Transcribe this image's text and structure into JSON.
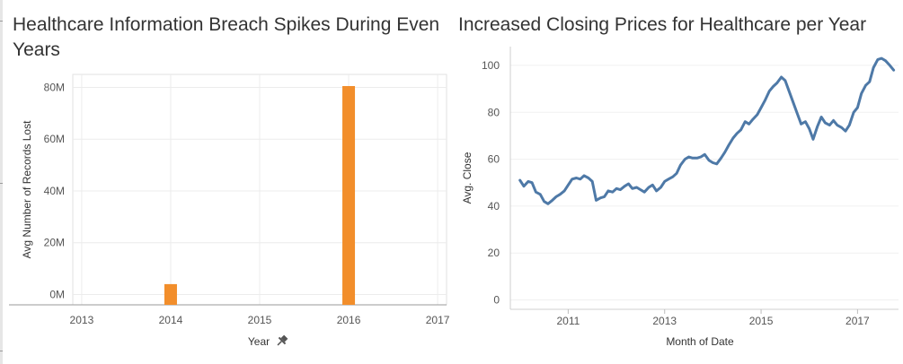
{
  "charts": [
    {
      "id": "breach",
      "type": "bar",
      "title": "Healthcare Information Breach Spikes During Even Years",
      "xlabel": "Year",
      "ylabel": "Avg Number of Records Lost",
      "x_ticks": [
        "2013",
        "2014",
        "2015",
        "2016",
        "2017"
      ],
      "x_range": [
        2012.9,
        2017.1
      ],
      "y_ticks": [
        "0M",
        "20M",
        "40M",
        "60M",
        "80M"
      ],
      "y_tick_values": [
        0,
        20,
        40,
        60,
        80
      ],
      "ylim": [
        -4,
        85
      ],
      "bars": [
        {
          "x": 2014,
          "value": 4,
          "color": "#f28e2b"
        },
        {
          "x": 2016,
          "value": 80.5,
          "color": "#f28e2b"
        }
      ],
      "pin_icon": "pin-icon"
    },
    {
      "id": "price",
      "type": "line",
      "title": "Increased Closing Prices for Healthcare per Year",
      "xlabel": "Month of Date",
      "ylabel": "Avg. Close",
      "x_ticks": [
        "2011",
        "2013",
        "2015",
        "2017"
      ],
      "x_tick_values": [
        2011,
        2013,
        2015,
        2017
      ],
      "x_range": [
        2009.8,
        2017.85
      ],
      "y_ticks": [
        "0",
        "20",
        "40",
        "60",
        "80",
        "100"
      ],
      "y_tick_values": [
        0,
        20,
        40,
        60,
        80,
        100
      ],
      "ylim": [
        -4,
        108
      ],
      "color": "#4e79a7",
      "series": [
        {
          "x": 2010.0,
          "y": 51
        },
        {
          "x": 2010.08,
          "y": 48.5
        },
        {
          "x": 2010.17,
          "y": 50.5
        },
        {
          "x": 2010.25,
          "y": 50
        },
        {
          "x": 2010.33,
          "y": 46
        },
        {
          "x": 2010.42,
          "y": 45
        },
        {
          "x": 2010.5,
          "y": 42
        },
        {
          "x": 2010.58,
          "y": 41
        },
        {
          "x": 2010.67,
          "y": 42.5
        },
        {
          "x": 2010.75,
          "y": 44
        },
        {
          "x": 2010.83,
          "y": 45
        },
        {
          "x": 2010.92,
          "y": 46.5
        },
        {
          "x": 2011.0,
          "y": 49
        },
        {
          "x": 2011.08,
          "y": 51.5
        },
        {
          "x": 2011.17,
          "y": 52
        },
        {
          "x": 2011.25,
          "y": 51.5
        },
        {
          "x": 2011.33,
          "y": 53
        },
        {
          "x": 2011.42,
          "y": 52
        },
        {
          "x": 2011.5,
          "y": 50.5
        },
        {
          "x": 2011.58,
          "y": 42.5
        },
        {
          "x": 2011.67,
          "y": 43.5
        },
        {
          "x": 2011.75,
          "y": 44
        },
        {
          "x": 2011.83,
          "y": 46.5
        },
        {
          "x": 2011.92,
          "y": 46
        },
        {
          "x": 2012.0,
          "y": 47.5
        },
        {
          "x": 2012.08,
          "y": 47
        },
        {
          "x": 2012.17,
          "y": 48.5
        },
        {
          "x": 2012.25,
          "y": 49.5
        },
        {
          "x": 2012.33,
          "y": 47.5
        },
        {
          "x": 2012.42,
          "y": 48
        },
        {
          "x": 2012.5,
          "y": 47
        },
        {
          "x": 2012.58,
          "y": 46
        },
        {
          "x": 2012.67,
          "y": 48
        },
        {
          "x": 2012.75,
          "y": 49
        },
        {
          "x": 2012.83,
          "y": 46.5
        },
        {
          "x": 2012.92,
          "y": 48
        },
        {
          "x": 2013.0,
          "y": 50.5
        },
        {
          "x": 2013.08,
          "y": 51.5
        },
        {
          "x": 2013.17,
          "y": 52.5
        },
        {
          "x": 2013.25,
          "y": 54
        },
        {
          "x": 2013.33,
          "y": 57.5
        },
        {
          "x": 2013.42,
          "y": 60
        },
        {
          "x": 2013.5,
          "y": 61
        },
        {
          "x": 2013.58,
          "y": 60.5
        },
        {
          "x": 2013.67,
          "y": 60.5
        },
        {
          "x": 2013.75,
          "y": 61
        },
        {
          "x": 2013.83,
          "y": 62
        },
        {
          "x": 2013.92,
          "y": 59.5
        },
        {
          "x": 2014.0,
          "y": 58.5
        },
        {
          "x": 2014.08,
          "y": 58
        },
        {
          "x": 2014.17,
          "y": 60.5
        },
        {
          "x": 2014.25,
          "y": 63
        },
        {
          "x": 2014.33,
          "y": 66
        },
        {
          "x": 2014.42,
          "y": 69
        },
        {
          "x": 2014.5,
          "y": 71
        },
        {
          "x": 2014.58,
          "y": 72.5
        },
        {
          "x": 2014.67,
          "y": 76
        },
        {
          "x": 2014.75,
          "y": 75
        },
        {
          "x": 2014.83,
          "y": 77
        },
        {
          "x": 2014.92,
          "y": 79
        },
        {
          "x": 2015.0,
          "y": 82
        },
        {
          "x": 2015.08,
          "y": 85
        },
        {
          "x": 2015.17,
          "y": 89
        },
        {
          "x": 2015.25,
          "y": 91
        },
        {
          "x": 2015.33,
          "y": 92.5
        },
        {
          "x": 2015.42,
          "y": 95
        },
        {
          "x": 2015.5,
          "y": 93.5
        },
        {
          "x": 2015.58,
          "y": 89
        },
        {
          "x": 2015.67,
          "y": 84
        },
        {
          "x": 2015.75,
          "y": 79.5
        },
        {
          "x": 2015.83,
          "y": 75
        },
        {
          "x": 2015.92,
          "y": 76
        },
        {
          "x": 2016.0,
          "y": 73
        },
        {
          "x": 2016.08,
          "y": 68.5
        },
        {
          "x": 2016.17,
          "y": 74
        },
        {
          "x": 2016.25,
          "y": 78
        },
        {
          "x": 2016.33,
          "y": 75.5
        },
        {
          "x": 2016.42,
          "y": 74.5
        },
        {
          "x": 2016.5,
          "y": 76.5
        },
        {
          "x": 2016.58,
          "y": 74.5
        },
        {
          "x": 2016.67,
          "y": 73.5
        },
        {
          "x": 2016.75,
          "y": 72
        },
        {
          "x": 2016.83,
          "y": 74.5
        },
        {
          "x": 2016.92,
          "y": 80
        },
        {
          "x": 2017.0,
          "y": 82
        },
        {
          "x": 2017.08,
          "y": 88
        },
        {
          "x": 2017.17,
          "y": 91.5
        },
        {
          "x": 2017.25,
          "y": 93
        },
        {
          "x": 2017.33,
          "y": 99
        },
        {
          "x": 2017.42,
          "y": 102.5
        },
        {
          "x": 2017.5,
          "y": 103
        },
        {
          "x": 2017.58,
          "y": 102
        },
        {
          "x": 2017.67,
          "y": 100
        },
        {
          "x": 2017.75,
          "y": 98
        }
      ]
    }
  ]
}
